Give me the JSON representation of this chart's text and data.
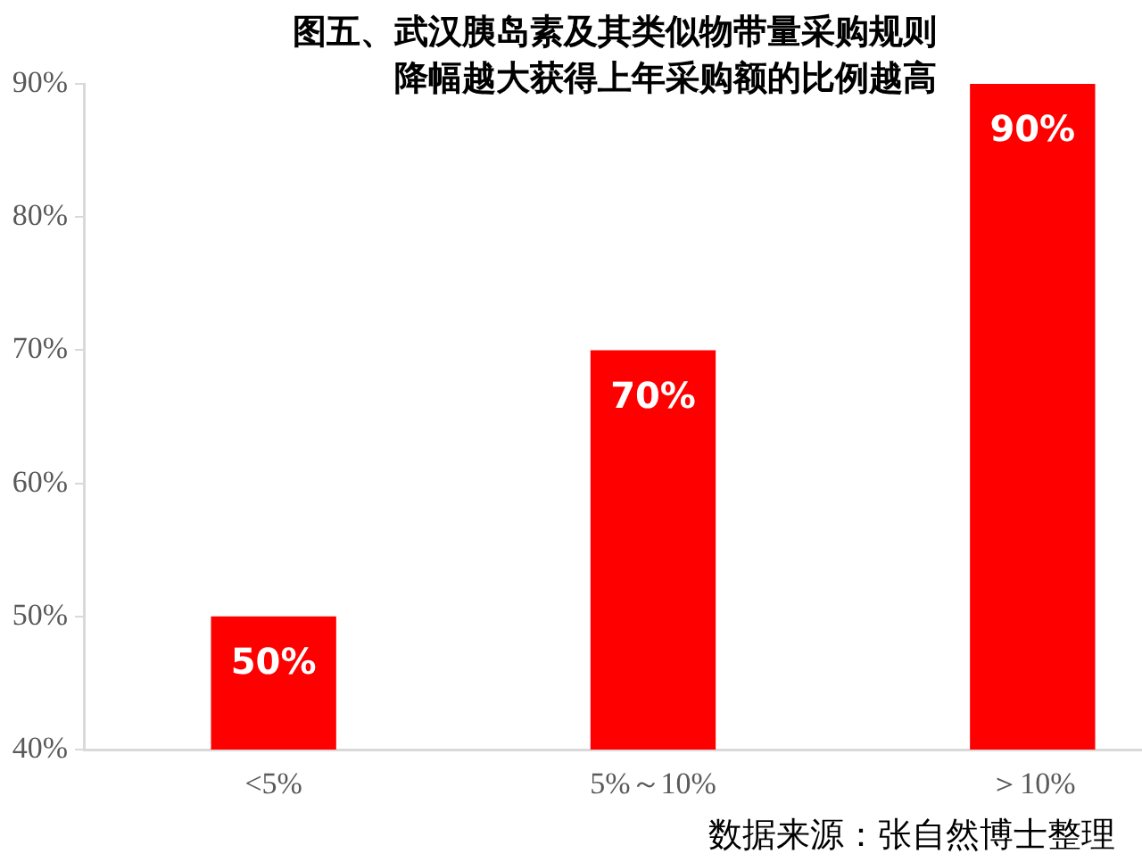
{
  "chart_data": {
    "type": "bar",
    "title": "图五、武汉胰岛素及其类似物带量采购规则",
    "subtitle": "降幅越大获得上年采购额的比例越高",
    "categories": [
      "<5%",
      "5%～10%",
      "＞10%"
    ],
    "values": [
      50,
      70,
      90
    ],
    "color": "#ff0000",
    "value_labels": [
      "50%",
      "70%",
      "90%"
    ],
    "ylim": [
      40,
      90
    ],
    "yticks": [
      {
        "value": 40,
        "label": "40%"
      },
      {
        "value": 50,
        "label": "50%"
      },
      {
        "value": 60,
        "label": "60%"
      },
      {
        "value": 70,
        "label": "70%"
      },
      {
        "value": 80,
        "label": "80%"
      },
      {
        "value": 90,
        "label": "90%"
      }
    ],
    "annotations": [
      "数据来源：张自然博士整理"
    ]
  }
}
